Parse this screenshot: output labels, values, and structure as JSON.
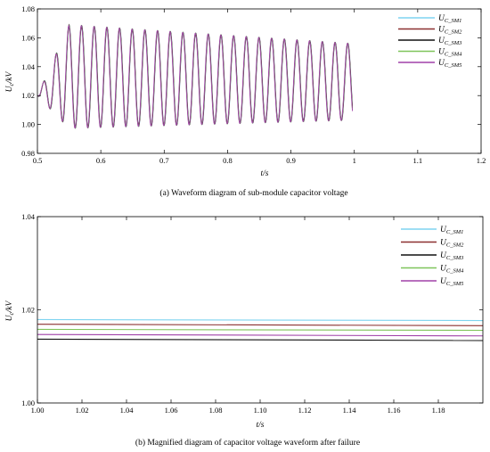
{
  "chart_data": [
    {
      "type": "line",
      "panel": "a",
      "caption": "(a) Waveform diagram of sub-module capacitor voltage",
      "xlabel": "t/s",
      "ylabel": "Uc/kV",
      "xlim": [
        0.5,
        1.2
      ],
      "ylim": [
        0.98,
        1.08
      ],
      "xticks": [
        "0.5",
        "0.6",
        "0.7",
        "0.8",
        "0.9",
        "1",
        "1.1",
        "1.2"
      ],
      "yticks": [
        "0.98",
        "1.00",
        "1.02",
        "1.04",
        "1.06",
        "1.08"
      ],
      "grid": false,
      "legend_position": "top-right",
      "oscillation": {
        "t_start": 0.5,
        "t_end": 0.997,
        "frequency_hz": 50,
        "peak_amplitude_max": 1.069,
        "peak_at_t": 0.55,
        "peak_final": 1.056,
        "trough_min": 0.997,
        "trough_at_t": 0.52,
        "trough_final": 1.003
      },
      "step_at": 0.997,
      "series": [
        {
          "name": "UC_SM1",
          "sub": "C_SM1",
          "color": "#7fd4f0",
          "steady_value": 1.0178
        },
        {
          "name": "UC_SM2",
          "sub": "C_SM2",
          "color": "#8b3030",
          "steady_value": 1.0168
        },
        {
          "name": "UC_SM3",
          "sub": "C_SM3",
          "color": "#111111",
          "steady_value": 1.0136
        },
        {
          "name": "UC_SM4",
          "sub": "C_SM4",
          "color": "#7fc45a",
          "steady_value": 1.0157
        },
        {
          "name": "UC_SM5",
          "sub": "C_SM5",
          "color": "#a040a8",
          "steady_value": 1.0146
        }
      ]
    },
    {
      "type": "line",
      "panel": "b",
      "caption": "(b) Magnified diagram of capacitor voltage waveform after failure",
      "xlabel": "t/s",
      "ylabel": "Uc/kV",
      "xlim": [
        1.0,
        1.2
      ],
      "ylim": [
        1.0,
        1.04
      ],
      "xticks": [
        "1.00",
        "1.02",
        "1.04",
        "1.06",
        "1.08",
        "1.10",
        "1.12",
        "1.14",
        "1.16",
        "1.18"
      ],
      "yticks": [
        "1.00",
        "1.02",
        "1.04"
      ],
      "grid": false,
      "legend_position": "top-right",
      "series": [
        {
          "name": "UC_SM1",
          "sub": "C_SM1",
          "color": "#7fd4f0",
          "start": 1.0179,
          "end": 1.0177
        },
        {
          "name": "UC_SM2",
          "sub": "C_SM2",
          "color": "#8b3030",
          "start": 1.0169,
          "end": 1.0166
        },
        {
          "name": "UC_SM3",
          "sub": "C_SM3",
          "color": "#111111",
          "start": 1.0137,
          "end": 1.0134
        },
        {
          "name": "UC_SM4",
          "sub": "C_SM4",
          "color": "#7fc45a",
          "start": 1.0158,
          "end": 1.0156
        },
        {
          "name": "UC_SM5",
          "sub": "C_SM5",
          "color": "#a040a8",
          "start": 1.0147,
          "end": 1.0144
        }
      ]
    }
  ]
}
